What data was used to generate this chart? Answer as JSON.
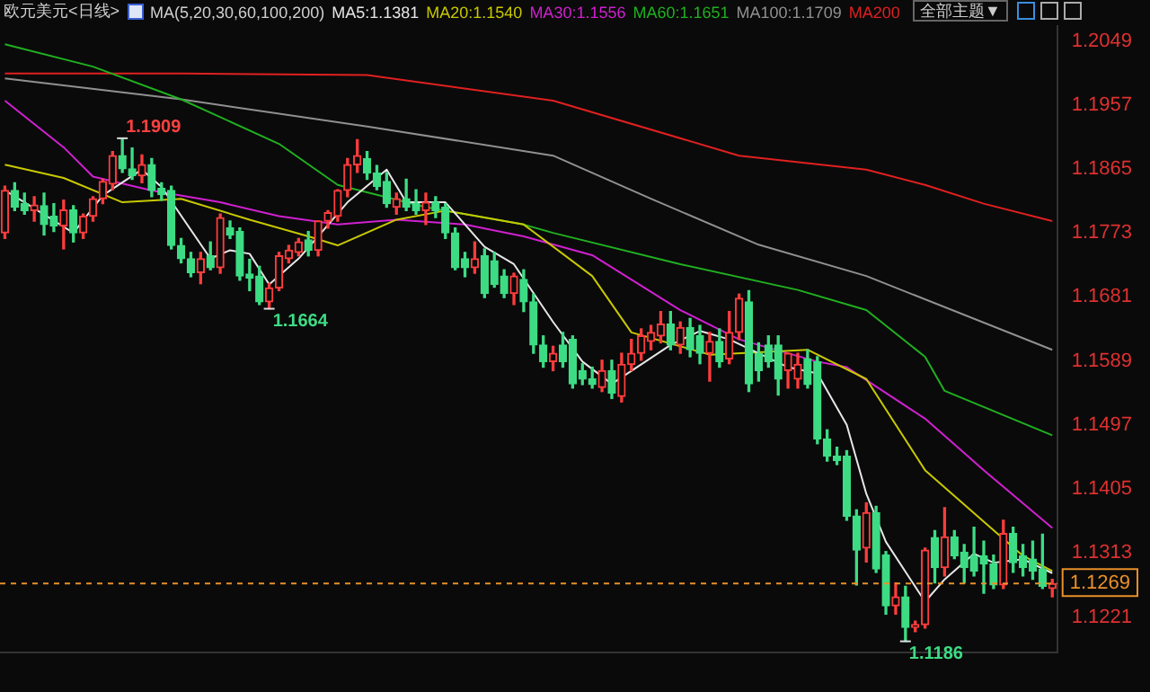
{
  "chart_data": {
    "type": "candlestick",
    "title": "欧元美元<日线>",
    "subtitle": "MA(5,20,30,60,100,200)",
    "legend": "top",
    "categories": [
      null,
      null,
      null,
      null,
      null,
      null,
      null,
      null,
      null,
      null,
      null,
      null,
      null,
      null,
      null,
      null,
      null,
      null,
      null,
      null,
      null,
      null,
      null,
      null,
      null,
      null,
      null,
      null,
      null,
      null,
      null,
      null,
      null,
      null,
      null,
      null,
      null,
      null,
      null,
      null,
      null,
      null,
      null,
      null,
      null,
      null,
      null,
      null,
      null,
      null,
      null,
      null,
      null,
      null,
      null,
      null,
      null,
      null,
      null,
      null,
      null,
      null,
      null,
      null,
      null,
      null,
      null,
      null,
      null,
      null,
      null,
      null,
      null,
      null,
      null,
      null,
      null,
      null,
      null,
      null,
      null,
      null,
      null,
      null,
      null,
      null,
      null,
      null,
      null,
      null,
      null,
      null,
      null,
      null,
      null,
      null,
      null,
      null,
      null,
      null,
      null,
      null,
      null,
      null,
      null,
      null,
      null,
      null
    ],
    "ohlc": [
      [
        1.1773,
        1.184,
        1.1765,
        1.1834
      ],
      [
        1.1834,
        1.1845,
        1.1805,
        1.181
      ],
      [
        1.1815,
        1.183,
        1.18,
        1.1805
      ],
      [
        1.1805,
        1.1825,
        1.179,
        1.1813
      ],
      [
        1.1812,
        1.183,
        1.177,
        1.1785
      ],
      [
        1.1797,
        1.1815,
        1.1775,
        1.1783
      ],
      [
        1.1783,
        1.182,
        1.175,
        1.1806
      ],
      [
        1.1806,
        1.1812,
        1.176,
        1.1773
      ],
      [
        1.1773,
        1.18,
        1.1765,
        1.1797
      ],
      [
        1.1797,
        1.1825,
        1.179,
        1.1822
      ],
      [
        1.1822,
        1.185,
        1.1815,
        1.1847
      ],
      [
        1.1843,
        1.189,
        1.1835,
        1.1884
      ],
      [
        1.1884,
        1.1909,
        1.186,
        1.1865
      ],
      [
        1.1865,
        1.1895,
        1.185,
        1.1855
      ],
      [
        1.1855,
        1.1885,
        1.1845,
        1.1871
      ],
      [
        1.1871,
        1.188,
        1.1825,
        1.1834
      ],
      [
        1.1837,
        1.1845,
        1.182,
        1.1828
      ],
      [
        1.1834,
        1.184,
        1.175,
        1.1755
      ],
      [
        1.1755,
        1.1765,
        1.173,
        1.1736
      ],
      [
        1.1736,
        1.1745,
        1.171,
        1.1716
      ],
      [
        1.1716,
        1.1745,
        1.17,
        1.1736
      ],
      [
        1.174,
        1.176,
        1.172,
        1.1723
      ],
      [
        1.1723,
        1.18,
        1.1715,
        1.1795
      ],
      [
        1.178,
        1.179,
        1.1765,
        1.177
      ],
      [
        1.1775,
        1.178,
        1.1705,
        1.1711
      ],
      [
        1.1714,
        1.1735,
        1.169,
        1.1708
      ],
      [
        1.1711,
        1.1725,
        1.167,
        1.1674
      ],
      [
        1.1674,
        1.17,
        1.1664,
        1.1694
      ],
      [
        1.1694,
        1.1745,
        1.169,
        1.174
      ],
      [
        1.1736,
        1.1755,
        1.173,
        1.1748
      ],
      [
        1.1745,
        1.1765,
        1.174,
        1.176
      ],
      [
        1.1763,
        1.1775,
        1.174,
        1.1748
      ],
      [
        1.1748,
        1.179,
        1.174,
        1.179
      ],
      [
        1.179,
        1.1805,
        1.178,
        1.1802
      ],
      [
        1.1797,
        1.1835,
        1.179,
        1.1834
      ],
      [
        1.1834,
        1.188,
        1.1825,
        1.1871
      ],
      [
        1.1871,
        1.1907,
        1.186,
        1.1884
      ],
      [
        1.188,
        1.189,
        1.185,
        1.1859
      ],
      [
        1.1859,
        1.187,
        1.1835,
        1.184
      ],
      [
        1.1847,
        1.186,
        1.181,
        1.1815
      ],
      [
        1.181,
        1.183,
        1.18,
        1.1822
      ],
      [
        1.1822,
        1.185,
        1.1805,
        1.181
      ],
      [
        1.1815,
        1.1835,
        1.18,
        1.1805
      ],
      [
        1.1805,
        1.183,
        1.1785,
        1.1817
      ],
      [
        1.1817,
        1.1825,
        1.1795,
        1.1805
      ],
      [
        1.181,
        1.1815,
        1.1765,
        1.1773
      ],
      [
        1.1773,
        1.178,
        1.172,
        1.1723
      ],
      [
        1.1736,
        1.1745,
        1.171,
        1.1723
      ],
      [
        1.1723,
        1.176,
        1.1715,
        1.1736
      ],
      [
        1.174,
        1.175,
        1.168,
        1.1686
      ],
      [
        1.1733,
        1.1745,
        1.1695,
        1.1699
      ],
      [
        1.1711,
        1.172,
        1.168,
        1.1686
      ],
      [
        1.1686,
        1.1715,
        1.167,
        1.1711
      ],
      [
        1.1706,
        1.172,
        1.166,
        1.1674
      ],
      [
        1.1674,
        1.1685,
        1.16,
        1.1612
      ],
      [
        1.1612,
        1.1625,
        1.158,
        1.1588
      ],
      [
        1.1588,
        1.161,
        1.1575,
        1.16
      ],
      [
        1.1612,
        1.163,
        1.158,
        1.1588
      ],
      [
        1.162,
        1.1625,
        1.155,
        1.1556
      ],
      [
        1.1575,
        1.1585,
        1.1555,
        1.1563
      ],
      [
        1.1563,
        1.158,
        1.155,
        1.1555
      ],
      [
        1.1551,
        1.159,
        1.1545,
        1.1575
      ],
      [
        1.1575,
        1.159,
        1.1535,
        1.1543
      ],
      [
        1.1538,
        1.16,
        1.153,
        1.1584
      ],
      [
        1.1584,
        1.162,
        1.1575,
        1.16
      ],
      [
        1.16,
        1.1635,
        1.159,
        1.1625
      ],
      [
        1.1617,
        1.164,
        1.1605,
        1.163
      ],
      [
        1.1625,
        1.166,
        1.1615,
        1.1642
      ],
      [
        1.1642,
        1.166,
        1.1605,
        1.1612
      ],
      [
        1.1612,
        1.1645,
        1.16,
        1.1637
      ],
      [
        1.1637,
        1.165,
        1.1595,
        1.1605
      ],
      [
        1.1625,
        1.164,
        1.1585,
        1.16
      ],
      [
        1.16,
        1.163,
        1.156,
        1.1617
      ],
      [
        1.1617,
        1.1635,
        1.158,
        1.1588
      ],
      [
        1.1592,
        1.166,
        1.1585,
        1.163
      ],
      [
        1.163,
        1.1685,
        1.162,
        1.1679
      ],
      [
        1.1674,
        1.169,
        1.1545,
        1.1556
      ],
      [
        1.16,
        1.1615,
        1.156,
        1.1575
      ],
      [
        1.1612,
        1.1625,
        1.158,
        1.1588
      ],
      [
        1.1612,
        1.1625,
        1.154,
        1.1563
      ],
      [
        1.1575,
        1.16,
        1.155,
        1.16
      ],
      [
        1.1563,
        1.16,
        1.155,
        1.1584
      ],
      [
        1.1592,
        1.1605,
        1.155,
        1.1555
      ],
      [
        1.1588,
        1.1595,
        1.147,
        1.1477
      ],
      [
        1.1477,
        1.149,
        1.1445,
        1.1452
      ],
      [
        1.1452,
        1.1465,
        1.144,
        1.1446
      ],
      [
        1.1452,
        1.146,
        1.136,
        1.1366
      ],
      [
        1.1366,
        1.1375,
        1.1267,
        1.1317
      ],
      [
        1.132,
        1.1385,
        1.13,
        1.1371
      ],
      [
        1.1371,
        1.138,
        1.1285,
        1.129
      ],
      [
        1.131,
        1.1315,
        1.1225,
        1.1237
      ],
      [
        1.1237,
        1.127,
        1.1225,
        1.125
      ],
      [
        1.125,
        1.1265,
        1.1186,
        1.1206
      ],
      [
        1.1206,
        1.1215,
        1.12,
        1.121
      ],
      [
        1.121,
        1.132,
        1.1205,
        1.1317
      ],
      [
        1.1335,
        1.1345,
        1.127,
        1.1292
      ],
      [
        1.1292,
        1.1378,
        1.128,
        1.1336
      ],
      [
        1.1336,
        1.1345,
        1.1305,
        1.1309
      ],
      [
        1.1314,
        1.1325,
        1.127,
        1.1292
      ],
      [
        1.1309,
        1.135,
        1.128,
        1.1287
      ],
      [
        1.1309,
        1.133,
        1.1255,
        1.1297
      ],
      [
        1.1297,
        1.131,
        1.1262,
        1.1267
      ],
      [
        1.1267,
        1.136,
        1.1262,
        1.1341
      ],
      [
        1.1341,
        1.135,
        1.1285,
        1.1299
      ],
      [
        1.1309,
        1.1325,
        1.128,
        1.1292
      ],
      [
        1.1304,
        1.133,
        1.1275,
        1.1287
      ],
      [
        1.129,
        1.134,
        1.1262,
        1.1265
      ],
      [
        1.1262,
        1.1275,
        1.125,
        1.1269
      ]
    ],
    "colors": [
      "#ff3c3c",
      "#3ddc84",
      "#3ddc84",
      "#ff3c3c",
      "#3ddc84",
      "#3ddc84",
      "#ff3c3c",
      "#3ddc84",
      "#ff3c3c",
      "#ff3c3c",
      "#ff3c3c",
      "#ff3c3c",
      "#3ddc84",
      "#3ddc84",
      "#ff3c3c",
      "#3ddc84",
      "#3ddc84",
      "#3ddc84",
      "#3ddc84",
      "#3ddc84",
      "#ff3c3c",
      "#3ddc84",
      "#ff3c3c",
      "#3ddc84",
      "#3ddc84",
      "#3ddc84",
      "#3ddc84",
      "#ff3c3c",
      "#ff3c3c",
      "#ff3c3c",
      "#ff3c3c",
      "#3ddc84",
      "#ff3c3c",
      "#ff3c3c",
      "#ff3c3c",
      "#ff3c3c",
      "#ff3c3c",
      "#3ddc84",
      "#3ddc84",
      "#3ddc84",
      "#ff3c3c",
      "#3ddc84",
      "#3ddc84",
      "#ff3c3c",
      "#3ddc84",
      "#3ddc84",
      "#3ddc84",
      "#3ddc84",
      "#ff3c3c",
      "#3ddc84",
      "#3ddc84",
      "#3ddc84",
      "#ff3c3c",
      "#3ddc84",
      "#3ddc84",
      "#3ddc84",
      "#ff3c3c",
      "#3ddc84",
      "#3ddc84",
      "#3ddc84",
      "#3ddc84",
      "#ff3c3c",
      "#3ddc84",
      "#ff3c3c",
      "#ff3c3c",
      "#ff3c3c",
      "#ff3c3c",
      "#ff3c3c",
      "#3ddc84",
      "#ff3c3c",
      "#3ddc84",
      "#3ddc84",
      "#ff3c3c",
      "#3ddc84",
      "#ff3c3c",
      "#ff3c3c",
      "#3ddc84",
      "#3ddc84",
      "#3ddc84",
      "#3ddc84",
      "#ff3c3c",
      "#ff3c3c",
      "#3ddc84",
      "#3ddc84",
      "#3ddc84",
      "#3ddc84",
      "#3ddc84",
      "#3ddc84",
      "#ff3c3c",
      "#3ddc84",
      "#3ddc84",
      "#ff3c3c",
      "#3ddc84",
      "#ff3c3c",
      "#ff3c3c",
      "#3ddc84",
      "#ff3c3c",
      "#3ddc84",
      "#3ddc84",
      "#3ddc84",
      "#3ddc84",
      "#3ddc84",
      "#ff3c3c",
      "#3ddc84",
      "#3ddc84",
      "#3ddc84",
      "#3ddc84",
      "#ff3c3c"
    ],
    "series": [
      {
        "name": "MA5:1.1381",
        "type": "line",
        "color": "#e6e6e6",
        "values": [
          1.1834,
          null,
          1.1817,
          null,
          null,
          null,
          null,
          1.1773,
          null,
          null,
          1.1827,
          null,
          null,
          null,
          1.1864,
          null,
          1.1839,
          null,
          null,
          null,
          null,
          1.1736,
          null,
          1.1748,
          null,
          1.1743,
          null,
          1.1699,
          null,
          null,
          1.1736,
          null,
          1.1768,
          null,
          null,
          1.1817,
          null,
          null,
          null,
          1.1864,
          null,
          1.1817,
          null,
          null,
          null,
          1.1817,
          null,
          null,
          null,
          1.1753,
          null,
          null,
          1.1728,
          null,
          null,
          null,
          1.1645,
          null,
          null,
          1.1588,
          null,
          null,
          1.1556,
          null,
          null,
          null,
          null,
          null,
          1.1612,
          null,
          null,
          1.1632,
          null,
          null,
          1.162,
          null,
          null,
          null,
          null,
          null,
          1.158,
          null,
          null,
          1.1571,
          null,
          null,
          1.1497,
          null,
          1.1398,
          null,
          1.1329,
          null,
          null,
          null,
          1.1243,
          null,
          1.1275,
          null,
          null,
          1.1312,
          null,
          1.1299,
          null,
          null,
          1.1304,
          null,
          null,
          1.1284
        ]
      },
      {
        "name": "MA20:1.1540",
        "type": "line",
        "color": "#c8c800",
        "values": [
          1.1871,
          null,
          null,
          null,
          null,
          null,
          1.1852,
          null,
          null,
          null,
          null,
          null,
          1.1817,
          null,
          null,
          null,
          null,
          null,
          1.1822,
          null,
          null,
          null,
          null,
          null,
          null,
          1.1792,
          null,
          null,
          null,
          null,
          null,
          1.1768,
          null,
          null,
          1.1755,
          null,
          null,
          null,
          null,
          null,
          1.1792,
          null,
          null,
          null,
          null,
          1.1805,
          null,
          null,
          null,
          null,
          null,
          null,
          null,
          1.1785,
          null,
          null,
          null,
          null,
          null,
          null,
          1.1711,
          null,
          null,
          null,
          1.163,
          null,
          null,
          null,
          null,
          null,
          null,
          null,
          1.1598,
          null,
          null,
          null,
          null,
          null,
          null,
          null,
          null,
          null,
          1.1605,
          null,
          null,
          null,
          null,
          null,
          1.1563,
          null,
          null,
          null,
          null,
          null,
          1.1432,
          null,
          null,
          null,
          null,
          null,
          1.1358,
          null,
          null,
          null,
          1.1309,
          null,
          null,
          1.1287
        ]
      },
      {
        "name": "MA30:1.1556",
        "type": "line",
        "color": "#d020d0",
        "values": [
          1.1963,
          null,
          null,
          null,
          null,
          null,
          1.1896,
          null,
          null,
          1.1854,
          null,
          null,
          null,
          null,
          null,
          1.1834,
          null,
          null,
          null,
          null,
          null,
          null,
          1.1817,
          null,
          null,
          null,
          null,
          null,
          1.1797,
          null,
          null,
          null,
          null,
          null,
          1.1785,
          null,
          null,
          null,
          null,
          null,
          1.1792,
          null,
          null,
          null,
          null,
          null,
          null,
          1.1785,
          null,
          null,
          null,
          null,
          null,
          1.1768,
          null,
          null,
          null,
          null,
          null,
          null,
          1.1741,
          null,
          null,
          null,
          null,
          null,
          null,
          null,
          null,
          1.1662,
          null,
          null,
          null,
          null,
          null,
          1.162,
          null,
          null,
          null,
          null,
          null,
          null,
          null,
          1.1588,
          null,
          null,
          1.158,
          null,
          null,
          null,
          null,
          null,
          null,
          null,
          1.1506,
          null,
          null,
          null,
          null,
          null,
          1.1432,
          null,
          null,
          null,
          null,
          null,
          null,
          1.1349
        ]
      },
      {
        "name": "MA60:1.1651",
        "type": "line",
        "color": "#20b020",
        "values": [
          1.2044,
          null,
          null,
          null,
          null,
          null,
          null,
          null,
          null,
          1.2012,
          null,
          null,
          null,
          null,
          null,
          null,
          null,
          null,
          1.1965,
          null,
          null,
          null,
          null,
          null,
          null,
          null,
          null,
          null,
          1.1901,
          null,
          null,
          null,
          null,
          null,
          1.1842,
          null,
          null,
          null,
          null,
          null,
          null,
          null,
          null,
          1.181,
          null,
          null,
          null,
          null,
          null,
          null,
          null,
          null,
          null,
          1.1785,
          null,
          null,
          1.1773,
          null,
          null,
          null,
          null,
          null,
          null,
          null,
          null,
          null,
          null,
          null,
          null,
          1.1728,
          null,
          null,
          null,
          null,
          null,
          null,
          null,
          null,
          null,
          null,
          null,
          1.1691,
          null,
          null,
          null,
          null,
          null,
          null,
          1.1662,
          null,
          null,
          null,
          null,
          null,
          1.1595,
          null,
          1.1546,
          null,
          null,
          null,
          null,
          null,
          null,
          null,
          null,
          null,
          null,
          1.1482
        ]
      },
      {
        "name": "MA100:1.1709",
        "type": "line",
        "color": "#909090",
        "values": [
          1.1995,
          null,
          null,
          null,
          null,
          null,
          null,
          null,
          null,
          null,
          null,
          null,
          null,
          null,
          null,
          null,
          null,
          null,
          1.1965,
          null,
          null,
          null,
          null,
          null,
          null,
          null,
          null,
          null,
          null,
          null,
          null,
          null,
          null,
          null,
          null,
          null,
          null,
          1.1926,
          null,
          null,
          null,
          null,
          null,
          null,
          null,
          null,
          null,
          null,
          null,
          null,
          null,
          null,
          null,
          null,
          null,
          null,
          1.1884,
          null,
          null,
          null,
          null,
          null,
          null,
          null,
          null,
          null,
          1.1822,
          null,
          null,
          null,
          null,
          null,
          null,
          null,
          null,
          null,
          null,
          1.1756,
          null,
          null,
          null,
          null,
          null,
          null,
          null,
          null,
          null,
          null,
          1.1711,
          null,
          null,
          null,
          null,
          null,
          null,
          null,
          null,
          null,
          null,
          null,
          null,
          null,
          null,
          null,
          null,
          null,
          null,
          1.1605
        ]
      },
      {
        "name": "MA200",
        "type": "line",
        "color": "#e02020",
        "values": [
          1.2002,
          null,
          null,
          null,
          null,
          null,
          null,
          null,
          null,
          null,
          null,
          null,
          null,
          null,
          null,
          null,
          null,
          null,
          1.2002,
          null,
          null,
          null,
          null,
          null,
          null,
          null,
          null,
          null,
          null,
          null,
          null,
          null,
          null,
          null,
          null,
          null,
          null,
          1.2,
          null,
          null,
          null,
          null,
          null,
          null,
          null,
          null,
          null,
          null,
          null,
          null,
          null,
          null,
          null,
          null,
          null,
          null,
          1.1963,
          null,
          null,
          null,
          null,
          null,
          null,
          null,
          null,
          null,
          null,
          null,
          null,
          null,
          null,
          null,
          null,
          null,
          null,
          1.1884,
          null,
          null,
          null,
          null,
          null,
          null,
          null,
          null,
          null,
          null,
          null,
          null,
          1.1864,
          null,
          null,
          null,
          null,
          null,
          1.1842,
          null,
          null,
          null,
          null,
          null,
          1.1815,
          null,
          null,
          null,
          null,
          null,
          null,
          1.179
        ]
      }
    ],
    "ylim": [
      1.117,
      1.207
    ],
    "yticks": [
      1.2049,
      1.1957,
      1.1865,
      1.1773,
      1.1681,
      1.1589,
      1.1497,
      1.1405,
      1.1313,
      1.1221
    ],
    "tick_labels": "y",
    "ref_lines": [
      {
        "axis": "y",
        "value": 1.1269,
        "label": "1.1269",
        "color": "#e8902a",
        "line_style": "dashed"
      }
    ],
    "annotations": [
      "1.1909",
      "1.1664",
      "1.1186",
      "全部主题▼"
    ]
  }
}
